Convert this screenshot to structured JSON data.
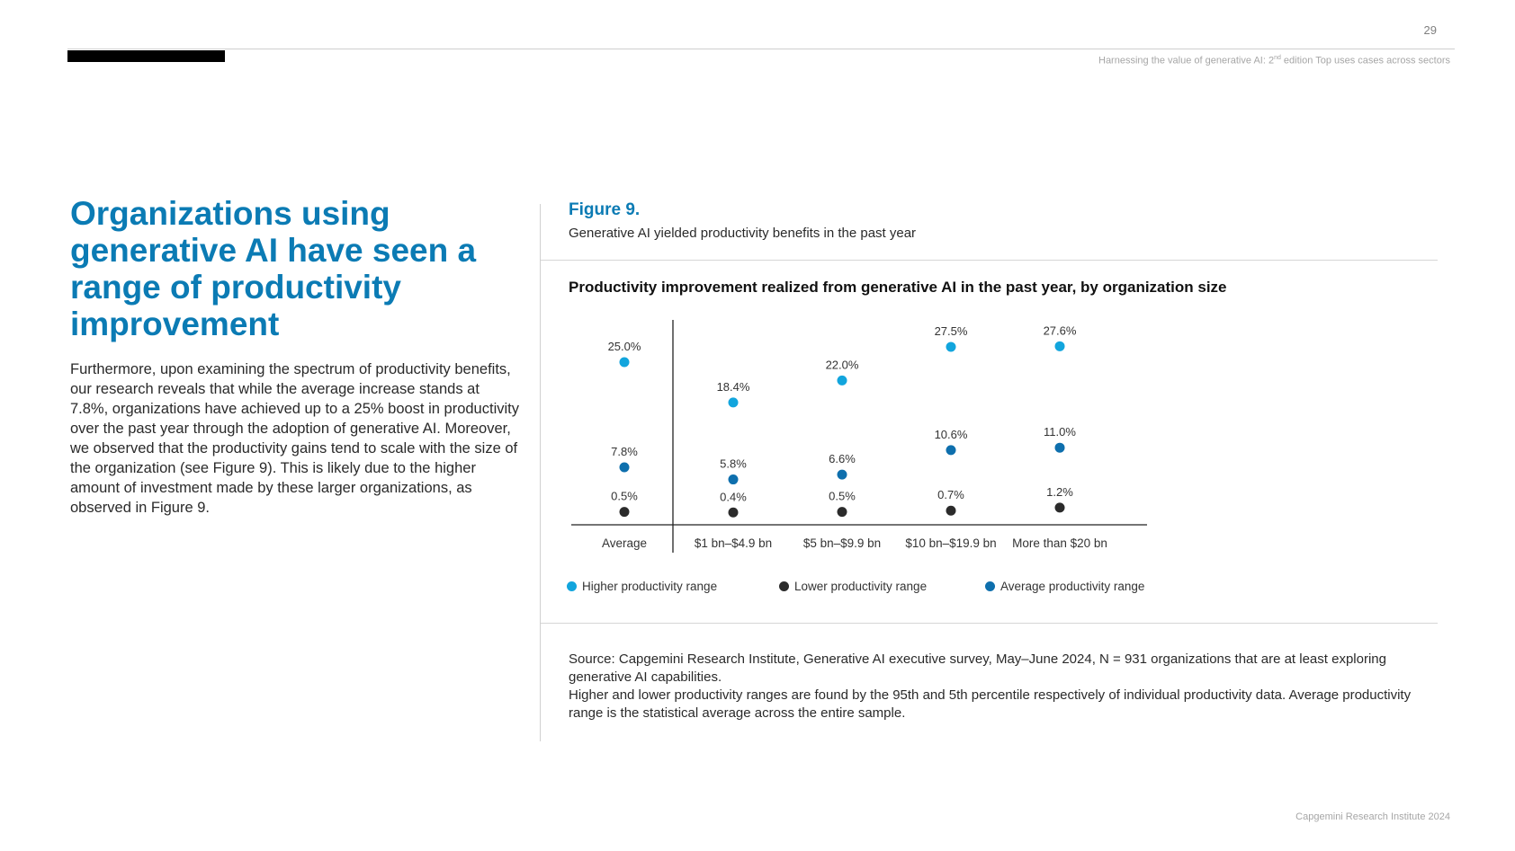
{
  "page_number": "29",
  "running_header": {
    "before_sup": "Harnessing the value of generative AI: 2",
    "sup": "nd",
    "after_sup": " edition Top uses cases across sectors"
  },
  "headline": "Organizations using generative AI have seen a range of productivity improvement",
  "body_text": "Furthermore, upon examining the spectrum of productivity benefits, our research reveals that while the average increase stands at 7.8%, organizations have achieved up to a 25% boost in productivity over the past year through the adoption of generative AI. Moreover, we observed that the productivity gains tend to scale with the size of the organization (see Figure 9). This is likely due to the higher amount of investment made by these larger organizations, as observed in Figure 9.",
  "figure": {
    "label": "Figure 9.",
    "caption": "Generative AI yielded productivity benefits in the past year"
  },
  "chart_data": {
    "type": "scatter",
    "title": "Productivity improvement realized from generative AI in the past year, by organization size",
    "categories": [
      "Average",
      "$1 bn–$4.9 bn",
      "$5 bn–$9.9 bn",
      "$10 bn–$19.9 bn",
      "More than $20 bn"
    ],
    "series": [
      {
        "name": "Higher productivity range",
        "color": "#12a5dd",
        "values": [
          25.0,
          18.4,
          22.0,
          27.5,
          27.6
        ]
      },
      {
        "name": "Lower productivity range",
        "color": "#2b2b2b",
        "values": [
          0.5,
          0.4,
          0.5,
          0.7,
          1.2
        ]
      },
      {
        "name": "Average productivity range",
        "color": "#0e6fad",
        "values": [
          7.8,
          5.8,
          6.6,
          10.6,
          11.0
        ]
      }
    ],
    "value_labels": [
      [
        "25.0%",
        "18.4%",
        "22.0%",
        "27.5%",
        "27.6%"
      ],
      [
        "0.5%",
        "0.4%",
        "0.5%",
        "0.7%",
        "1.2%"
      ],
      [
        "7.8%",
        "5.8%",
        "6.6%",
        "10.6%",
        "11.0%"
      ]
    ],
    "ylim": [
      0,
      30
    ],
    "grid": false,
    "legend_position": "bottom"
  },
  "source": [
    "Source: Capgemini Research Institute, Generative AI executive survey, May–June 2024, N = 931 organizations that are at least exploring generative AI capabilities.",
    "Higher and lower productivity ranges are found by the 95th and 5th percentile respectively of individual productivity data. Average productivity range is the statistical average across the entire sample."
  ],
  "footer": "Capgemini Research Institute 2024"
}
